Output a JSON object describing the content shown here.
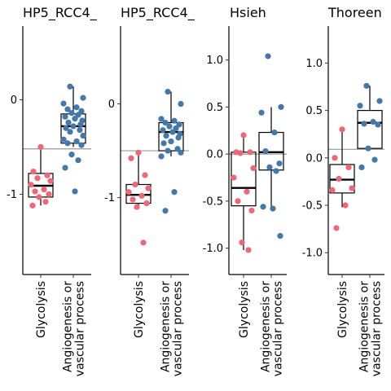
{
  "colors": {
    "glycolysis_points": "#EE6677",
    "angiogenesis_points": "#4477AA",
    "reference_line": "#999999",
    "box": "#000000"
  },
  "categories": [
    "Glycolysis",
    "Angiogenesis or\nvascular process"
  ],
  "chart_data": [
    {
      "type": "box",
      "title": "HP5_RCC4_",
      "ylim": [
        -1.85,
        0.78
      ],
      "yticks": [
        0,
        -1
      ],
      "reference_line": -0.52,
      "series": [
        {
          "category": "Glycolysis",
          "values": [
            -0.5,
            -0.76,
            -0.8,
            -0.83,
            -0.86,
            -0.9,
            -0.95,
            -0.97,
            -1.0,
            -1.03,
            -1.08,
            -1.12
          ],
          "box": {
            "q1": -1.03,
            "median": -0.91,
            "q3": -0.78,
            "lower": -1.12,
            "upper": -0.5
          }
        },
        {
          "category": "Angiogenesis or\nvascular process",
          "values": [
            0.14,
            0.02,
            -0.04,
            -0.08,
            -0.1,
            -0.12,
            -0.14,
            -0.16,
            -0.18,
            -0.2,
            -0.22,
            -0.24,
            -0.26,
            -0.28,
            -0.3,
            -0.32,
            -0.34,
            -0.38,
            -0.42,
            -0.44,
            -0.46,
            -0.48,
            -0.58,
            -0.64,
            -0.72,
            -0.97
          ],
          "box": {
            "q1": -0.46,
            "median": -0.28,
            "q3": -0.15,
            "lower": -0.5,
            "upper": 0.14
          }
        }
      ]
    },
    {
      "type": "box",
      "title": "HP5_RCC4_",
      "ylim": [
        -1.82,
        0.83
      ],
      "yticks": [
        0,
        -1
      ],
      "reference_line": -0.5,
      "series": [
        {
          "category": "Glycolysis",
          "values": [
            -0.52,
            -0.58,
            -0.76,
            -0.86,
            -0.9,
            -0.94,
            -0.98,
            -1.02,
            -1.06,
            -1.1,
            -1.48
          ],
          "box": {
            "q1": -1.06,
            "median": -0.97,
            "q3": -0.86,
            "lower": -1.1,
            "upper": -0.52
          }
        },
        {
          "category": "Angiogenesis or\nvascular process",
          "values": [
            0.13,
            0.0,
            -0.16,
            -0.18,
            -0.2,
            -0.22,
            -0.24,
            -0.26,
            -0.28,
            -0.3,
            -0.32,
            -0.34,
            -0.36,
            -0.4,
            -0.42,
            -0.48,
            -0.5,
            -0.52,
            -0.56,
            -0.94,
            -1.14
          ],
          "box": {
            "q1": -0.5,
            "median": -0.3,
            "q3": -0.2,
            "lower": -0.56,
            "upper": 0.13
          }
        }
      ]
    },
    {
      "type": "box",
      "title": "Hsieh",
      "ylim": [
        -1.28,
        1.36
      ],
      "yticks": [
        1.0,
        0.5,
        0.0,
        -0.5,
        -1.0
      ],
      "reference_line": 0.0,
      "series": [
        {
          "category": "Glycolysis",
          "values": [
            0.2,
            0.02,
            0.02,
            0.01,
            -0.15,
            -0.25,
            -0.4,
            -0.5,
            -0.6,
            -0.94,
            -1.02
          ],
          "box": {
            "q1": -0.55,
            "median": -0.36,
            "q3": 0.02,
            "lower": -1.02,
            "upper": 0.2
          }
        },
        {
          "category": "Angiogenesis or\nvascular process",
          "values": [
            1.04,
            0.5,
            0.44,
            0.23,
            0.03,
            -0.1,
            -0.14,
            -0.18,
            -0.56,
            -0.58,
            -0.87
          ],
          "box": {
            "q1": -0.17,
            "median": 0.02,
            "q3": 0.23,
            "lower": -0.58,
            "upper": 0.5
          }
        }
      ]
    },
    {
      "type": "box",
      "title": "Thoreen",
      "ylim": [
        -1.23,
        1.39
      ],
      "yticks": [
        1.0,
        0.5,
        0.0,
        -0.5,
        -1.0
      ],
      "reference_line": 0.09,
      "series": [
        {
          "category": "Glycolysis",
          "values": [
            0.3,
            0.0,
            -0.1,
            -0.22,
            -0.32,
            -0.34,
            -0.5,
            -0.74
          ],
          "box": {
            "q1": -0.37,
            "median": -0.23,
            "q3": -0.07,
            "lower": -0.52,
            "upper": 0.3
          }
        },
        {
          "category": "Angiogenesis or\nvascular process",
          "values": [
            0.76,
            0.6,
            0.55,
            0.38,
            0.36,
            0.35,
            0.1,
            -0.02,
            -0.1
          ],
          "box": {
            "q1": 0.1,
            "median": 0.37,
            "q3": 0.5,
            "lower": 0.1,
            "upper": 0.76
          }
        }
      ]
    }
  ]
}
